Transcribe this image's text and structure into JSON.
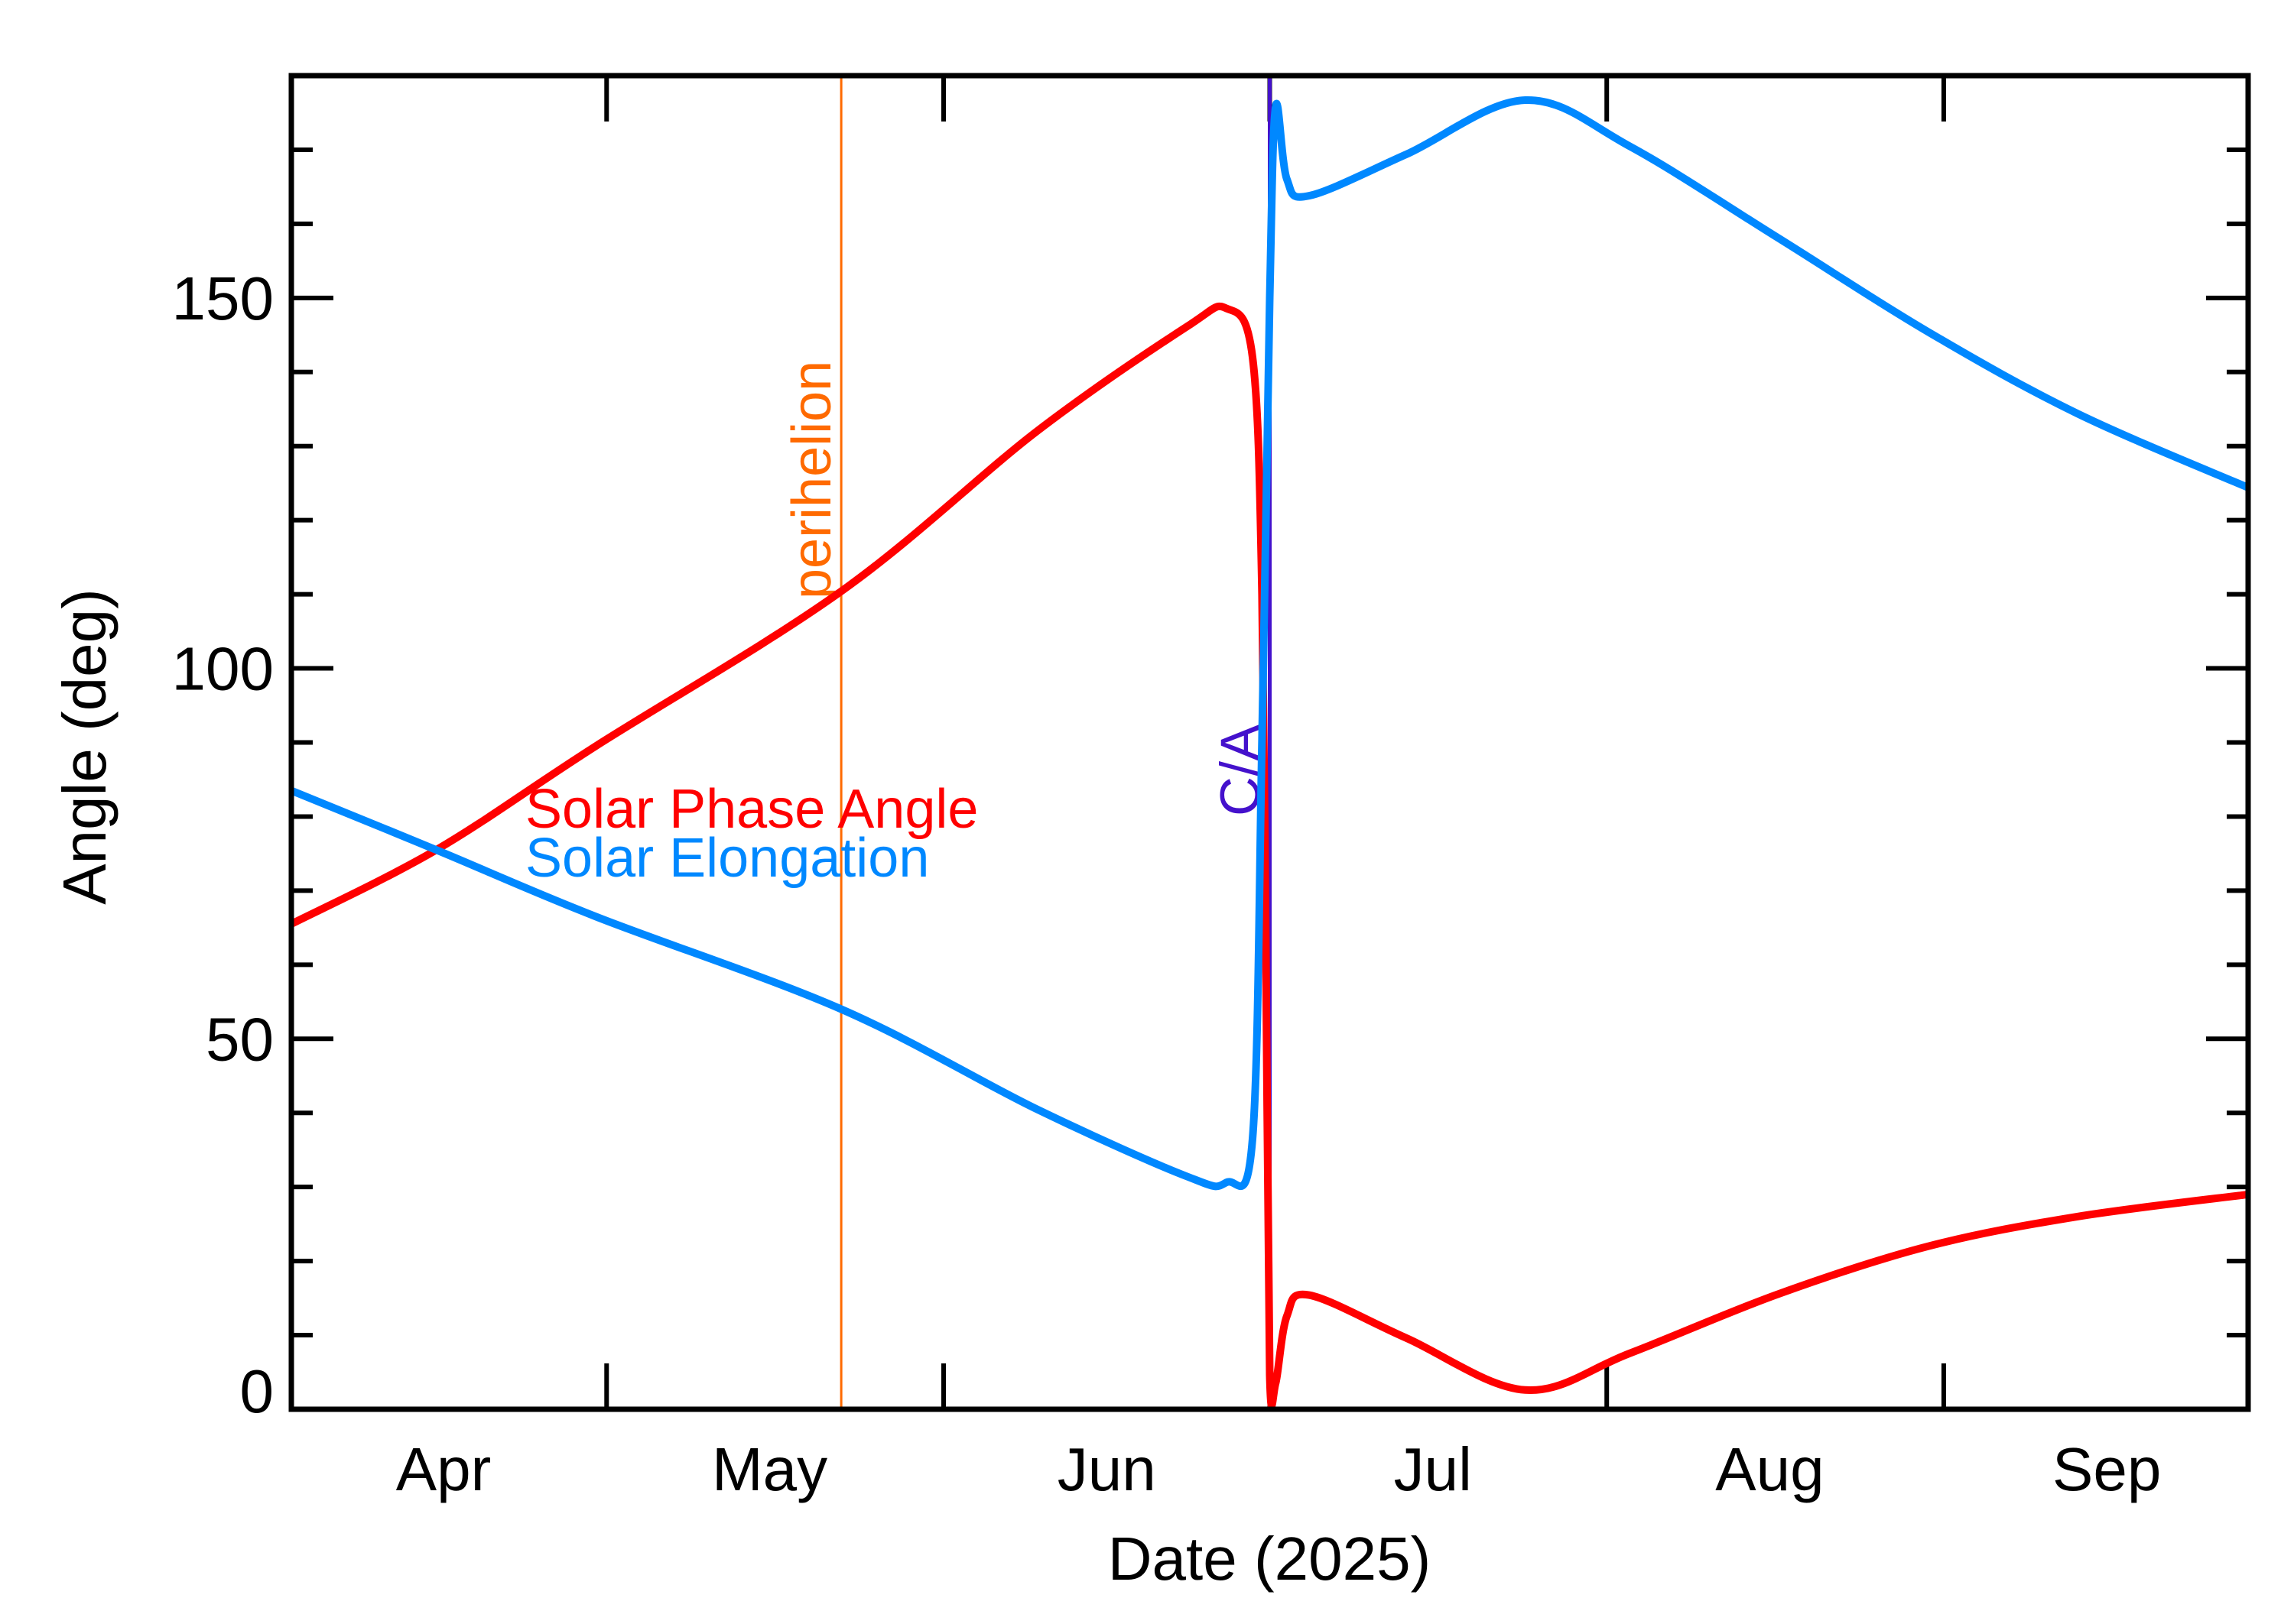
{
  "chart_data": {
    "type": "line",
    "title": "",
    "xlabel": "Date (2025)",
    "ylabel": "Angle (deg)",
    "xlim": [
      "2025-04-02",
      "2025-09-29"
    ],
    "ylim": [
      0,
      180
    ],
    "x_ticks": [
      {
        "date": "2025-05-01"
      },
      {
        "date": "2025-06-01"
      },
      {
        "date": "2025-07-01"
      },
      {
        "date": "2025-08-01"
      },
      {
        "date": "2025-09-01"
      }
    ],
    "x_tick_labels": [
      {
        "label": "Apr",
        "date": "2025-04-16"
      },
      {
        "label": "May",
        "date": "2025-05-16"
      },
      {
        "label": "Jun",
        "date": "2025-06-16"
      },
      {
        "label": "Jul",
        "date": "2025-07-16"
      },
      {
        "label": "Aug",
        "date": "2025-08-16"
      },
      {
        "label": "Sep",
        "date": "2025-09-16"
      }
    ],
    "y_ticks_major": [
      0,
      50,
      100,
      150
    ],
    "y_tick_labels": [
      "0",
      "50",
      "100",
      "150"
    ],
    "y_minor_step": 10,
    "grid": false,
    "legend_placement": "inside-left",
    "series": [
      {
        "name": "Solar Phase Angle",
        "color": "#ff0000",
        "x": [
          "2025-04-02T00",
          "2025-04-15T08",
          "2025-04-30T00",
          "2025-05-22T14",
          "2025-06-09T14",
          "2025-06-23T06",
          "2025-06-27T00",
          "2025-06-29T10",
          "2025-06-30T07",
          "2025-06-30T17",
          "2025-07-01T00",
          "2025-07-01T13",
          "2025-07-02T14",
          "2025-07-04T16",
          "2025-07-13T14",
          "2025-07-24T12",
          "2025-08-03T05",
          "2025-08-16T21",
          "2025-08-30T14",
          "2025-09-13T07",
          "2025-09-29T00"
        ],
        "values": [
          65.5,
          75.5,
          89.5,
          110.4,
          132,
          146,
          148.6,
          142,
          110,
          50,
          4.6,
          3.5,
          12.6,
          15.4,
          9.6,
          2.6,
          7.6,
          15.6,
          22,
          26,
          29
        ]
      },
      {
        "name": "Solar Elongation",
        "color": "#0088ff",
        "x": [
          "2025-04-02T00",
          "2025-04-15T08",
          "2025-04-30T00",
          "2025-05-22T14",
          "2025-06-09T14",
          "2025-06-23T06",
          "2025-06-27T00",
          "2025-06-29T10",
          "2025-06-30T07",
          "2025-07-01T00",
          "2025-07-01T13",
          "2025-07-02T14",
          "2025-07-04T16",
          "2025-07-13T14",
          "2025-07-24T12",
          "2025-08-03T05",
          "2025-08-16T21",
          "2025-08-30T14",
          "2025-09-13T07",
          "2025-09-29T00"
        ],
        "values": [
          83.5,
          75.5,
          66.5,
          54,
          40.5,
          31.5,
          30.6,
          36.5,
          90.5,
          150,
          175.8,
          166,
          163.8,
          169.4,
          176.7,
          170.4,
          158,
          145.4,
          134.4,
          124.4
        ]
      }
    ],
    "annotations": [
      {
        "label": "perihelion",
        "date": "2025-05-22T14",
        "color": "#ff6a00"
      },
      {
        "label": "C/A",
        "date": "2025-07-01T00",
        "color": "#4411cc"
      }
    ]
  }
}
